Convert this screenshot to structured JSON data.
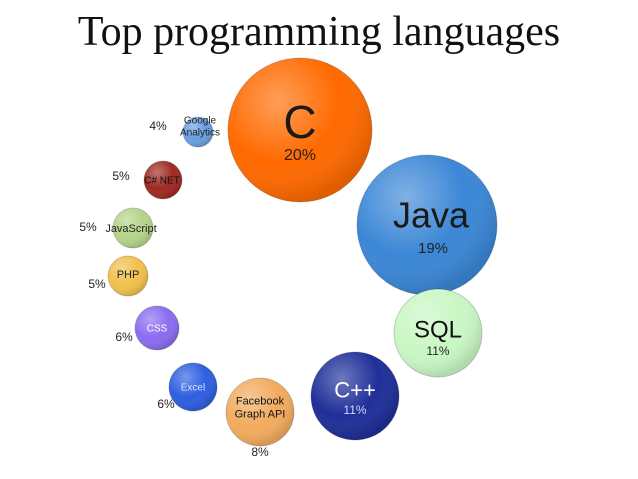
{
  "title": "Top programming languages",
  "chart_data": {
    "type": "bubble",
    "title": "Top programming languages",
    "categories": [
      "C",
      "Java",
      "SQL",
      "C++",
      "Facebook Graph API",
      "Excel",
      "CSS",
      "PHP",
      "JavaScript",
      "C# NET",
      "Google Analytics"
    ],
    "values": [
      20,
      19,
      11,
      11,
      8,
      6,
      6,
      5,
      5,
      5,
      4
    ],
    "value_labels": [
      "20%",
      "19%",
      "11%",
      "11%",
      "8%",
      "6%",
      "6%",
      "5%",
      "5%",
      "5%",
      "4%"
    ],
    "unit": "%",
    "bubbles": [
      {
        "name": "C",
        "lines": [
          "C"
        ],
        "value": 20,
        "pct": "20%",
        "color": "#ff6a00"
      },
      {
        "name": "Java",
        "lines": [
          "Java"
        ],
        "value": 19,
        "pct": "19%",
        "color": "#3b87d6"
      },
      {
        "name": "SQL",
        "lines": [
          "SQL"
        ],
        "value": 11,
        "pct": "11%",
        "color": "#c9f7c4"
      },
      {
        "name": "C++",
        "lines": [
          "C++"
        ],
        "value": 11,
        "pct": "11%",
        "color": "#1f2f98"
      },
      {
        "name": "Facebook Graph API",
        "lines": [
          "Facebook",
          "Graph API"
        ],
        "value": 8,
        "pct": "8%",
        "color": "#f2ab5e"
      },
      {
        "name": "Excel",
        "lines": [
          "Excel"
        ],
        "value": 6,
        "pct": "6%",
        "color": "#2f5fe0"
      },
      {
        "name": "CSS",
        "lines": [
          "CSS"
        ],
        "value": 6,
        "pct": "6%",
        "color": "#8a6cf0"
      },
      {
        "name": "PHP",
        "lines": [
          "PHP"
        ],
        "value": 5,
        "pct": "5%",
        "color": "#f1c04d"
      },
      {
        "name": "JavaScript",
        "lines": [
          "JavaScript"
        ],
        "value": 5,
        "pct": "5%",
        "color": "#b5d38a"
      },
      {
        "name": "C# NET",
        "lines": [
          "C# NET"
        ],
        "value": 5,
        "pct": "5%",
        "color": "#9e2b24"
      },
      {
        "name": "Google Analytics",
        "lines": [
          "Google",
          "Analytics"
        ],
        "value": 4,
        "pct": "4%",
        "color": "#6a9fe0"
      }
    ]
  }
}
